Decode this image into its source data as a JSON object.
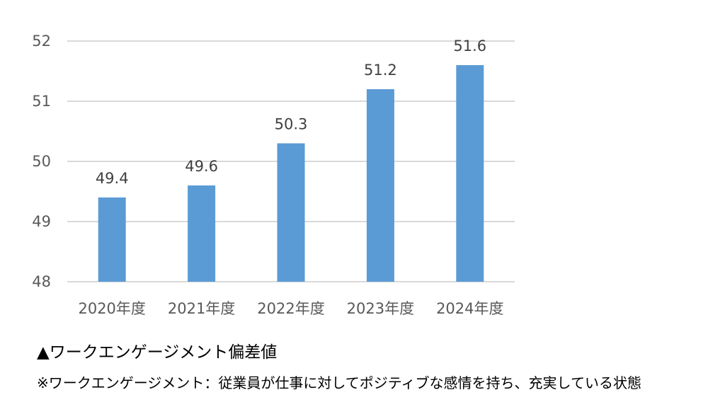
{
  "chart_data": {
    "type": "bar",
    "categories": [
      "2020年度",
      "2021年度",
      "2022年度",
      "2023年度",
      "2024年度"
    ],
    "values": [
      49.4,
      49.6,
      50.3,
      51.2,
      51.6
    ],
    "data_labels": [
      "49.4",
      "49.6",
      "50.3",
      "51.2",
      "51.6"
    ],
    "ylim": [
      48,
      52
    ],
    "yticks": [
      48,
      49,
      50,
      51,
      52
    ],
    "ytick_labels": [
      "48",
      "49",
      "50",
      "51",
      "52"
    ],
    "grid": true,
    "legend": "none",
    "bar_color": "#5B9BD5",
    "gridline_color": "#D9D9D9"
  },
  "captions": {
    "title": "▲ワークエンゲージメント偏差値",
    "note": "※ワークエンゲージメント：従業員が仕事に対してポジティブな感情を持ち、充実している状態"
  }
}
